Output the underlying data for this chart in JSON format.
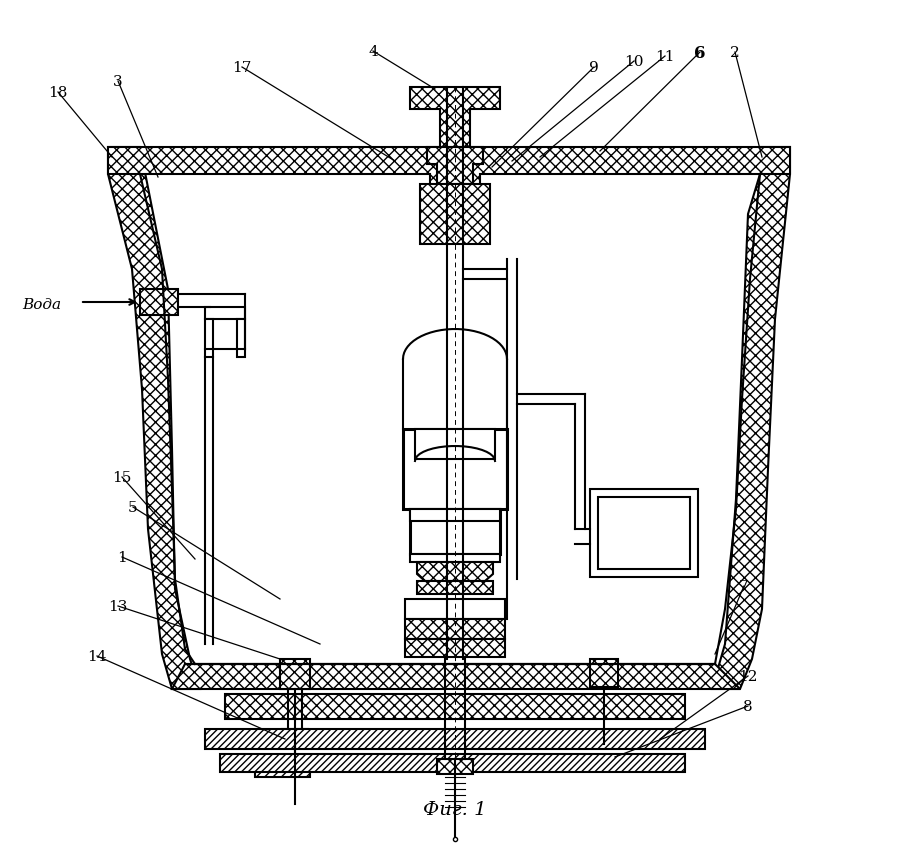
{
  "caption": "Фиг. 1",
  "water_label": "Вода",
  "bg": "#ffffff",
  "lc": "#000000",
  "fig_width": 9.0,
  "fig_height": 8.45
}
